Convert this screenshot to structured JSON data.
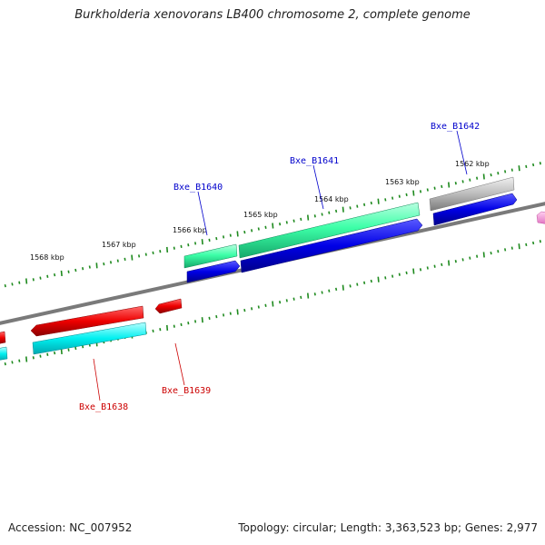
{
  "title": "Burkholderia xenovorans LB400 chromosome 2, complete genome",
  "footer": {
    "accession": "Accession: NC_007952",
    "summary": "Topology: circular; Length: 3,363,523 bp; Genes: 2,977"
  },
  "colors": {
    "backbone": "#7a7a7a",
    "ruler": "#1e8a1e",
    "label_forward": "#0000cc",
    "label_reverse": "#cc0000"
  },
  "scale_labels": [
    "1568 kbp",
    "1567 kbp",
    "1566 kbp",
    "1565 kbp",
    "1564 kbp",
    "1563 kbp",
    "1562 kbp"
  ],
  "genes": [
    {
      "name": "Bxe_B1638",
      "strand": "reverse"
    },
    {
      "name": "Bxe_B1639",
      "strand": "reverse"
    },
    {
      "name": "Bxe_B1640",
      "strand": "forward"
    },
    {
      "name": "Bxe_B1641",
      "strand": "forward"
    },
    {
      "name": "Bxe_B1642",
      "strand": "forward"
    }
  ]
}
